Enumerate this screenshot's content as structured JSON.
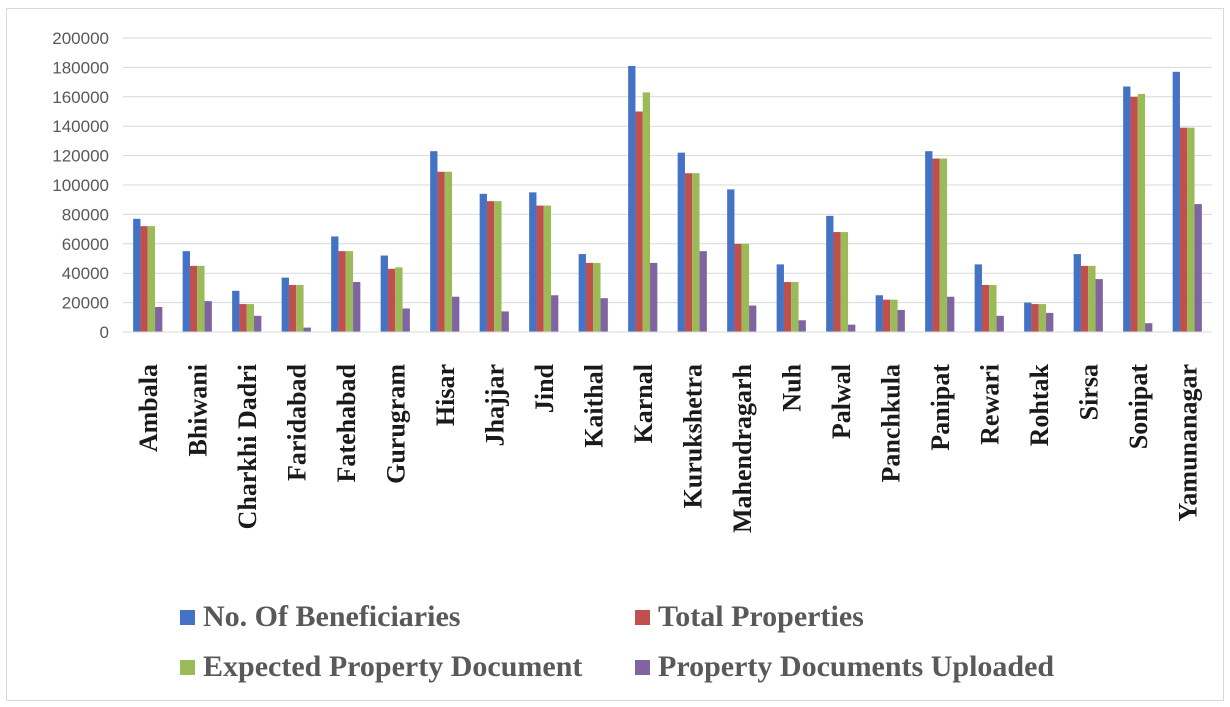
{
  "chart_data": {
    "type": "bar",
    "categories": [
      "Ambala",
      "Bhiwani",
      "Charkhi Dadri",
      "Faridabad",
      "Fatehabad",
      "Gurugram",
      "Hisar",
      "Jhajjar",
      "Jind",
      "Kaithal",
      "Karnal",
      "Kurukshetra",
      "Mahendragarh",
      "Nuh",
      "Palwal",
      "Panchkula",
      "Panipat",
      "Rewari",
      "Rohtak",
      "Sirsa",
      "Sonipat",
      "Yamunanagar"
    ],
    "series": [
      {
        "name": "No. Of Beneficiaries",
        "color": "#4472c4",
        "values": [
          77000,
          55000,
          28000,
          37000,
          65000,
          52000,
          123000,
          94000,
          95000,
          53000,
          181000,
          122000,
          97000,
          46000,
          79000,
          25000,
          123000,
          46000,
          20000,
          53000,
          167000,
          177000
        ]
      },
      {
        "name": "Total Properties",
        "color": "#c0504d",
        "values": [
          72000,
          45000,
          19000,
          32000,
          55000,
          43000,
          109000,
          89000,
          86000,
          47000,
          150000,
          108000,
          60000,
          34000,
          68000,
          22000,
          118000,
          32000,
          19000,
          45000,
          160000,
          139000
        ]
      },
      {
        "name": "Expected Property Document",
        "color": "#9bbb59",
        "values": [
          72000,
          45000,
          19000,
          32000,
          55000,
          44000,
          109000,
          89000,
          86000,
          47000,
          163000,
          108000,
          60000,
          34000,
          68000,
          22000,
          118000,
          32000,
          19000,
          45000,
          162000,
          139000
        ]
      },
      {
        "name": "Property Documents Uploaded",
        "color": "#8064a2",
        "values": [
          17000,
          21000,
          11000,
          3000,
          34000,
          16000,
          24000,
          14000,
          25000,
          23000,
          47000,
          55000,
          18000,
          8000,
          5000,
          15000,
          24000,
          11000,
          13000,
          36000,
          6000,
          87000
        ]
      }
    ],
    "yticks": [
      "0",
      "20000",
      "40000",
      "60000",
      "80000",
      "100000",
      "120000",
      "140000",
      "160000",
      "180000",
      "200000"
    ],
    "ylim": [
      0,
      200000
    ],
    "grid": true,
    "legend_position": "bottom"
  }
}
